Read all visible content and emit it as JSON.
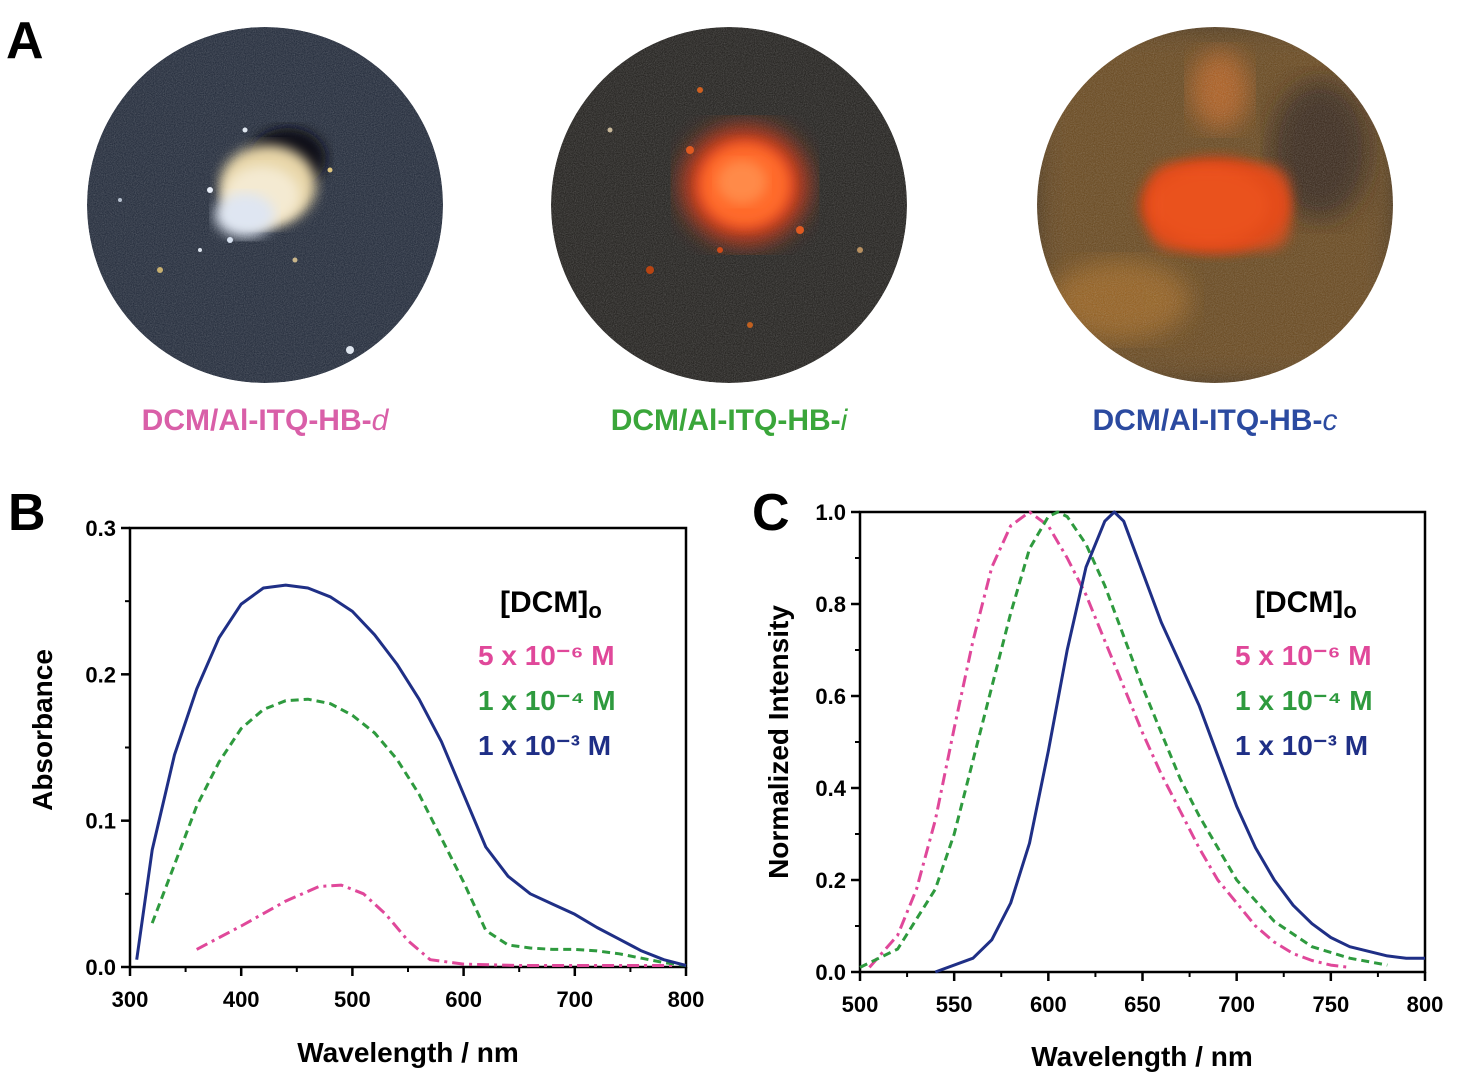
{
  "panel_a": {
    "label": "A",
    "samples": [
      {
        "caption_main": "DCM/Al-ITQ-HB-",
        "caption_suffix": "d",
        "color": "#d95fa8"
      },
      {
        "caption_main": "DCM/Al-ITQ-HB-",
        "caption_suffix": "i",
        "color": "#3aa63a"
      },
      {
        "caption_main": "DCM/Al-ITQ-HB-",
        "caption_suffix": "c",
        "color": "#2b4aa0"
      }
    ]
  },
  "chart_data": [
    {
      "panel_label": "B",
      "type": "line",
      "xlabel": "Wavelength / nm",
      "ylabel": "Absorbance",
      "xlim": [
        300,
        800
      ],
      "ylim": [
        0,
        0.3
      ],
      "x_ticks": [
        "300",
        "400",
        "500",
        "600",
        "700",
        "800"
      ],
      "y_ticks": [
        "0.0",
        "0.1",
        "0.2",
        "0.3"
      ],
      "legend": {
        "title_main": "[DCM]",
        "title_sub": "o",
        "entries": [
          {
            "text": "5 x 10⁻⁶ M",
            "color": "#e0489a"
          },
          {
            "text": "1 x 10⁻⁴ M",
            "color": "#2e9a3e"
          },
          {
            "text": "1 x 10⁻³ M",
            "color": "#1f2f86"
          }
        ]
      },
      "series": [
        {
          "name": "5 x 10⁻⁶ M",
          "color": "#e0489a",
          "style": "dashdot",
          "x": [
            360,
            400,
            440,
            470,
            490,
            510,
            530,
            550,
            570,
            600,
            650,
            700,
            750,
            790
          ],
          "y": [
            0.012,
            0.028,
            0.045,
            0.055,
            0.056,
            0.05,
            0.036,
            0.018,
            0.005,
            0.002,
            0.001,
            0.001,
            0.001,
            0.001
          ]
        },
        {
          "name": "1 x 10⁻⁴ M",
          "color": "#2e9a3e",
          "style": "dashed",
          "x": [
            320,
            340,
            360,
            380,
            400,
            420,
            440,
            460,
            480,
            500,
            520,
            540,
            560,
            580,
            600,
            620,
            640,
            660,
            680,
            700,
            720,
            740,
            760,
            780,
            800
          ],
          "y": [
            0.03,
            0.07,
            0.11,
            0.14,
            0.163,
            0.176,
            0.182,
            0.183,
            0.18,
            0.172,
            0.16,
            0.142,
            0.118,
            0.088,
            0.058,
            0.025,
            0.015,
            0.013,
            0.012,
            0.012,
            0.011,
            0.009,
            0.006,
            0.003,
            0.001
          ]
        },
        {
          "name": "1 x 10⁻³ M",
          "color": "#1f2f86",
          "style": "solid",
          "x": [
            306,
            320,
            340,
            360,
            380,
            400,
            420,
            440,
            460,
            480,
            500,
            520,
            540,
            560,
            580,
            600,
            620,
            640,
            660,
            680,
            700,
            720,
            740,
            760,
            780,
            800
          ],
          "y": [
            0.005,
            0.08,
            0.145,
            0.19,
            0.225,
            0.248,
            0.259,
            0.261,
            0.259,
            0.253,
            0.243,
            0.227,
            0.207,
            0.183,
            0.154,
            0.118,
            0.082,
            0.062,
            0.05,
            0.043,
            0.036,
            0.027,
            0.019,
            0.011,
            0.005,
            0.001
          ]
        }
      ]
    },
    {
      "panel_label": "C",
      "type": "line",
      "xlabel": "Wavelength / nm",
      "ylabel": "Normalized Intensity",
      "xlim": [
        500,
        800
      ],
      "ylim": [
        0,
        1.0
      ],
      "x_ticks": [
        "500",
        "550",
        "600",
        "650",
        "700",
        "750",
        "800"
      ],
      "y_ticks": [
        "0.0",
        "0.2",
        "0.4",
        "0.6",
        "0.8",
        "1.0"
      ],
      "legend": {
        "title_main": "[DCM]",
        "title_sub": "o",
        "entries": [
          {
            "text": "5 x 10⁻⁶ M",
            "color": "#e0489a"
          },
          {
            "text": "1 x 10⁻⁴ M",
            "color": "#2e9a3e"
          },
          {
            "text": "1 x 10⁻³ M",
            "color": "#1f2f86"
          }
        ]
      },
      "series": [
        {
          "name": "5 x 10⁻⁶ M",
          "color": "#e0489a",
          "style": "dashdot",
          "x": [
            505,
            520,
            530,
            540,
            550,
            560,
            570,
            580,
            590,
            600,
            610,
            620,
            630,
            640,
            650,
            660,
            670,
            680,
            690,
            700,
            710,
            720,
            730,
            740,
            750,
            760
          ],
          "y": [
            0.01,
            0.08,
            0.18,
            0.33,
            0.53,
            0.72,
            0.88,
            0.97,
            1.0,
            0.97,
            0.9,
            0.82,
            0.72,
            0.62,
            0.52,
            0.43,
            0.35,
            0.27,
            0.2,
            0.15,
            0.1,
            0.065,
            0.04,
            0.025,
            0.015,
            0.01
          ]
        },
        {
          "name": "1 x 10⁻⁴ M",
          "color": "#2e9a3e",
          "style": "dashed",
          "x": [
            500,
            520,
            540,
            550,
            560,
            570,
            580,
            590,
            600,
            605,
            610,
            620,
            630,
            640,
            650,
            660,
            670,
            680,
            690,
            700,
            720,
            740,
            760,
            780
          ],
          "y": [
            0.01,
            0.05,
            0.18,
            0.3,
            0.46,
            0.62,
            0.78,
            0.92,
            0.99,
            1.0,
            0.99,
            0.93,
            0.84,
            0.73,
            0.62,
            0.52,
            0.42,
            0.34,
            0.27,
            0.2,
            0.11,
            0.055,
            0.03,
            0.015
          ]
        },
        {
          "name": "1 x 10⁻³ M",
          "color": "#1f2f86",
          "style": "solid",
          "x": [
            540,
            560,
            570,
            580,
            590,
            600,
            610,
            620,
            630,
            635,
            640,
            650,
            660,
            670,
            680,
            690,
            700,
            710,
            720,
            730,
            740,
            750,
            760,
            770,
            780,
            790,
            800
          ],
          "y": [
            0.0,
            0.03,
            0.07,
            0.15,
            0.28,
            0.48,
            0.7,
            0.88,
            0.98,
            1.0,
            0.98,
            0.87,
            0.76,
            0.67,
            0.58,
            0.47,
            0.36,
            0.27,
            0.2,
            0.145,
            0.105,
            0.075,
            0.055,
            0.045,
            0.035,
            0.03,
            0.03
          ]
        }
      ]
    }
  ]
}
